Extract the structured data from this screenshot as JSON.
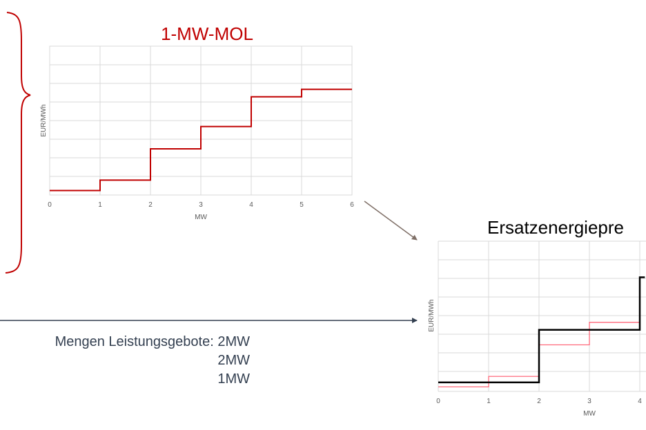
{
  "colors": {
    "mol_line": "#c00000",
    "price_line": "#000000",
    "overlay_line": "#ff5a6e",
    "grid": "#d9d9d9",
    "brace": "#c00000",
    "arrow_grey": "#7f6f67",
    "arrow_dark": "#333f50",
    "quantity_text": "#333f50"
  },
  "quantities": {
    "label": "Mengen Leistungsgebote:",
    "values": [
      "2MW",
      "2MW",
      "1MW"
    ]
  },
  "chart_data": [
    {
      "type": "line",
      "step": true,
      "title": "1-MW-MOL",
      "xlabel": "MW",
      "ylabel": "EUR/MWh",
      "xlim": [
        0,
        6
      ],
      "ylim": [
        0,
        100
      ],
      "xticks": [
        "0",
        "1",
        "2",
        "3",
        "4",
        "5",
        "6"
      ],
      "grid": true,
      "series": [
        {
          "color": "#c00000",
          "x": [
            0,
            1,
            2,
            3,
            4,
            5,
            6
          ],
          "y": [
            3,
            10,
            31,
            46,
            66,
            71,
            71
          ]
        }
      ]
    },
    {
      "type": "line",
      "step": true,
      "title": "Ersatzenergiepre",
      "xlabel": "MW",
      "ylabel": "EUR/MWh",
      "xlim": [
        0,
        4.1
      ],
      "ylim": [
        0,
        100
      ],
      "xticks": [
        "0",
        "1",
        "2",
        "3",
        "4"
      ],
      "grid": true,
      "series": [
        {
          "color": "#ff5a6e",
          "x": [
            0,
            1,
            2,
            3,
            4
          ],
          "y": [
            3,
            10,
            31,
            46,
            66
          ]
        },
        {
          "color": "#000000",
          "x": [
            0,
            2,
            4,
            4.1
          ],
          "y": [
            6,
            41,
            76,
            76
          ]
        }
      ]
    }
  ]
}
